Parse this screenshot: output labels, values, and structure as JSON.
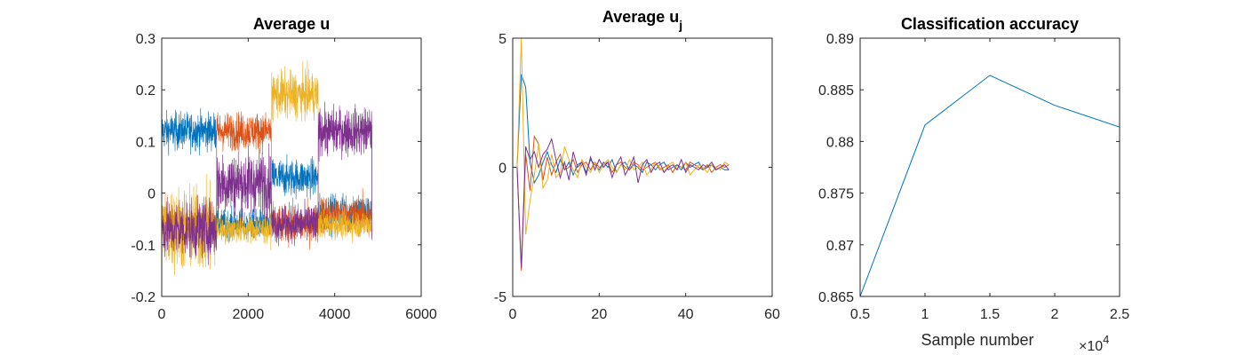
{
  "chart_data": [
    {
      "type": "line",
      "title": "Average u",
      "xlabel": "",
      "ylabel": "",
      "xlim": [
        0,
        6000
      ],
      "ylim": [
        -0.2,
        0.3
      ],
      "x_ticks": [
        0,
        2000,
        4000,
        6000
      ],
      "x_tick_labels": [
        "0",
        "2000",
        "4000",
        "6000"
      ],
      "y_ticks": [
        -0.2,
        -0.1,
        0,
        0.1,
        0.2,
        0.3
      ],
      "y_tick_labels": [
        "-0.2",
        "-0.1",
        "0",
        "0.1",
        "0.2",
        "0.3"
      ],
      "grid": false,
      "legend": "none",
      "series_colors": [
        "#0072BD",
        "#D95319",
        "#EDB120",
        "#7E2F8E"
      ],
      "x_end": 4860,
      "segment_boundaries": [
        0,
        1270,
        2540,
        3620,
        4860
      ],
      "segment_band_centers": [
        [
          0.12,
          -0.06,
          -0.07,
          -0.07
        ],
        [
          -0.06,
          0.12,
          -0.07,
          0.02
        ],
        [
          0.03,
          -0.06,
          0.19,
          -0.06
        ],
        [
          -0.04,
          -0.04,
          -0.06,
          0.12
        ]
      ],
      "segment_band_spreads": [
        [
          0.04,
          0.04,
          0.09,
          0.06
        ],
        [
          0.03,
          0.04,
          0.03,
          0.07
        ],
        [
          0.04,
          0.04,
          0.05,
          0.04
        ],
        [
          0.04,
          0.04,
          0.03,
          0.05
        ]
      ]
    },
    {
      "type": "line",
      "title": "Average u",
      "title_subscript": "j",
      "xlabel": "",
      "ylabel": "",
      "xlim": [
        0,
        60
      ],
      "ylim": [
        -5,
        5
      ],
      "x_ticks": [
        0,
        20,
        40,
        60
      ],
      "x_tick_labels": [
        "0",
        "20",
        "40",
        "60"
      ],
      "y_ticks": [
        -5,
        0,
        5
      ],
      "y_tick_labels": [
        "-5",
        "0",
        "5"
      ],
      "grid": false,
      "legend": "none",
      "x": [
        1,
        2,
        3,
        4,
        5,
        6,
        7,
        8,
        9,
        10,
        11,
        12,
        13,
        14,
        15,
        16,
        17,
        18,
        19,
        20,
        21,
        22,
        23,
        24,
        25,
        26,
        27,
        28,
        29,
        30,
        31,
        32,
        33,
        34,
        35,
        36,
        37,
        38,
        39,
        40,
        41,
        42,
        43,
        44,
        45,
        46,
        47,
        48,
        49,
        50
      ],
      "series": [
        {
          "color": "#0072BD",
          "values": [
            0,
            3.6,
            3.1,
            0.2,
            -0.6,
            -0.3,
            0.2,
            0.6,
            0.1,
            -0.2,
            0.3,
            -0.1,
            0.2,
            -0.3,
            0.1,
            0.2,
            -0.2,
            0.3,
            0.1,
            -0.1,
            0.2,
            0.0,
            0.3,
            -0.2,
            0.1,
            0.2,
            -0.1,
            0.1,
            0.0,
            -0.2,
            0.2,
            0.1,
            -0.1,
            0.1,
            0.2,
            -0.1,
            0.0,
            0.1,
            -0.1,
            0.2,
            0.0,
            0.1,
            0.2,
            -0.1,
            0.0,
            0.1,
            -0.1,
            0.0,
            -0.1,
            -0.1
          ]
        },
        {
          "color": "#D95319",
          "values": [
            0,
            -4.0,
            0.5,
            -0.9,
            1.2,
            0.9,
            -0.5,
            0.4,
            -0.3,
            0.2,
            0.5,
            -0.1,
            0.0,
            0.3,
            -0.2,
            0.1,
            0.2,
            -0.1,
            0.2,
            0.0,
            0.1,
            0.2,
            -0.2,
            0.1,
            0.2,
            0.0,
            -0.1,
            0.2,
            0.1,
            -0.1,
            0.0,
            0.1,
            0.2,
            -0.1,
            0.0,
            0.1,
            -0.2,
            0.1,
            0.0,
            -0.1,
            0.2,
            0.1,
            0.0,
            -0.1,
            0.1,
            -0.2,
            0.0,
            0.1,
            0.0,
            0.1
          ]
        },
        {
          "color": "#EDB120",
          "values": [
            0,
            5.0,
            -2.6,
            -1.3,
            -0.3,
            0.9,
            -0.8,
            -0.5,
            0.5,
            -0.4,
            -0.2,
            0.8,
            0.3,
            -0.1,
            -0.4,
            0.3,
            0.0,
            -0.2,
            0.2,
            -0.2,
            0.1,
            0.3,
            0.0,
            -0.2,
            0.1,
            -0.1,
            0.3,
            -0.1,
            0.0,
            0.2,
            -0.3,
            -0.1,
            0.2,
            0.0,
            -0.2,
            0.1,
            0.2,
            -0.1,
            0.0,
            0.2,
            -0.3,
            -0.1,
            0.1,
            0.0,
            -0.2,
            0.1,
            0.0,
            -0.1,
            0.2,
            0.1
          ]
        },
        {
          "color": "#7E2F8E",
          "values": [
            0,
            -3.9,
            0.8,
            0.3,
            0.6,
            0.0,
            0.5,
            0.7,
            1.1,
            0.3,
            -0.4,
            0.2,
            -0.5,
            0.6,
            0.0,
            0.2,
            -0.3,
            0.4,
            -0.1,
            0.3,
            0.0,
            0.2,
            -0.4,
            0.1,
            0.4,
            -0.3,
            0.0,
            0.4,
            -0.6,
            0.1,
            0.3,
            -0.2,
            0.1,
            0.2,
            -0.2,
            0.0,
            0.1,
            -0.1,
            0.3,
            -0.2,
            0.1,
            0.0,
            -0.1,
            0.1,
            0.0,
            0.2,
            -0.1,
            0.0,
            0.1,
            -0.1
          ]
        }
      ]
    },
    {
      "type": "line",
      "title": "Classification accuracy",
      "xlabel": "Sample number",
      "ylabel": "",
      "xlim": [
        0.5,
        2.5
      ],
      "ylim": [
        0.865,
        0.89
      ],
      "x_ticks": [
        0.5,
        1,
        1.5,
        2,
        2.5
      ],
      "x_tick_labels": [
        "0.5",
        "1",
        "1.5",
        "2",
        "2.5"
      ],
      "x_exponent_label": "×10",
      "x_exponent_power": "4",
      "y_ticks": [
        0.865,
        0.87,
        0.875,
        0.88,
        0.885,
        0.89
      ],
      "y_tick_labels": [
        "0.865",
        "0.87",
        "0.875",
        "0.88",
        "0.885",
        "0.89"
      ],
      "grid": false,
      "legend": "none",
      "x": [
        0.5,
        1,
        1.5,
        2,
        2.5
      ],
      "series": [
        {
          "color": "#0072BD",
          "values": [
            0.865,
            0.8816,
            0.8864,
            0.8835,
            0.8814
          ]
        }
      ]
    }
  ]
}
